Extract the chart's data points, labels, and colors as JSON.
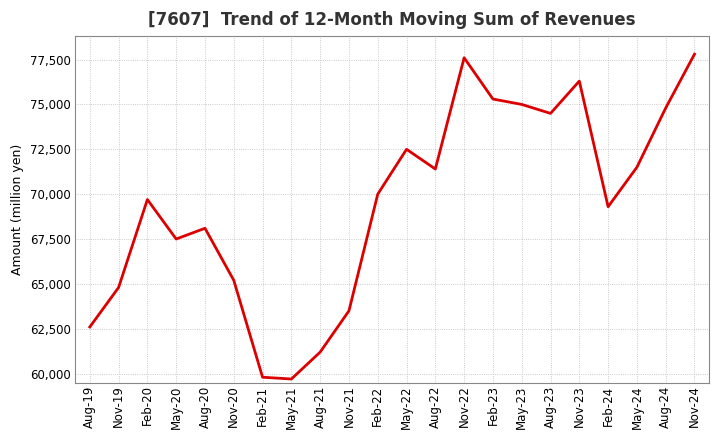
{
  "title": "[7607]  Trend of 12-Month Moving Sum of Revenues",
  "ylabel": "Amount (million yen)",
  "line_color": "#DD0000",
  "line_width": 2.0,
  "background_color": "#FFFFFF",
  "plot_bg_color": "#FFFFFF",
  "grid_color": "#BBBBBB",
  "ylim": [
    59500,
    78800
  ],
  "yticks": [
    60000,
    62500,
    65000,
    67500,
    70000,
    72500,
    75000,
    77500
  ],
  "x_labels": [
    "Aug-19",
    "Nov-19",
    "Feb-20",
    "May-20",
    "Aug-20",
    "Nov-20",
    "Feb-21",
    "May-21",
    "Aug-21",
    "Nov-21",
    "Feb-22",
    "May-22",
    "Aug-22",
    "Nov-22",
    "Feb-23",
    "May-23",
    "Aug-23",
    "Nov-23",
    "Feb-24",
    "May-24",
    "Aug-24",
    "Nov-24"
  ],
  "values": [
    62600,
    64800,
    69700,
    67500,
    68100,
    65200,
    59800,
    59700,
    61200,
    63500,
    70000,
    72500,
    71400,
    77600,
    75300,
    75000,
    74500,
    76300,
    69300,
    71500,
    74800,
    77800
  ],
  "title_fontsize": 12,
  "ylabel_fontsize": 9,
  "tick_fontsize": 8.5,
  "figsize": [
    7.2,
    4.4
  ],
  "dpi": 100
}
